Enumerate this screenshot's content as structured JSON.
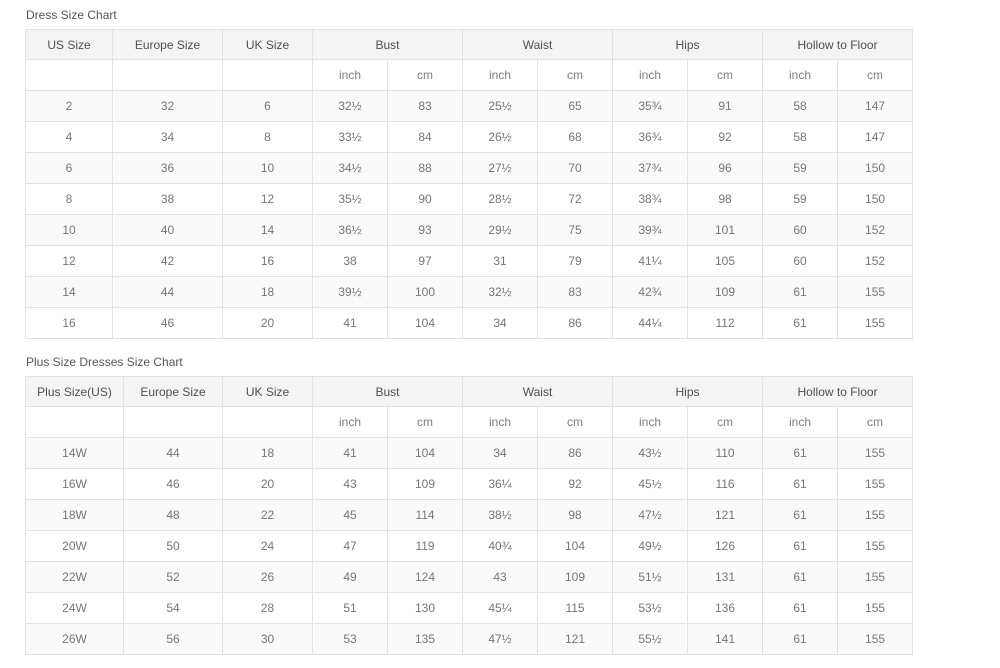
{
  "colors": {
    "page_bg": "#ffffff",
    "header_bg": "#f4f4f4",
    "stripe_bg": "#fafafa",
    "border": "#e2e2e2",
    "title_text": "#575757",
    "header_text": "#4f4f4f",
    "cell_text": "#767676"
  },
  "tables": [
    {
      "title": "Dress Size Chart",
      "group_headers": [
        "US Size",
        "Europe Size",
        "UK Size",
        "Bust",
        "Waist",
        "Hips",
        "Hollow to Floor"
      ],
      "unit_row": [
        "",
        "",
        "",
        "inch",
        "cm",
        "inch",
        "cm",
        "inch",
        "cm",
        "inch",
        "cm"
      ],
      "rows": [
        [
          "2",
          "32",
          "6",
          "32½",
          "83",
          "25½",
          "65",
          "35¾",
          "91",
          "58",
          "147"
        ],
        [
          "4",
          "34",
          "8",
          "33½",
          "84",
          "26½",
          "68",
          "36¾",
          "92",
          "58",
          "147"
        ],
        [
          "6",
          "36",
          "10",
          "34½",
          "88",
          "27½",
          "70",
          "37¾",
          "96",
          "59",
          "150"
        ],
        [
          "8",
          "38",
          "12",
          "35½",
          "90",
          "28½",
          "72",
          "38¾",
          "98",
          "59",
          "150"
        ],
        [
          "10",
          "40",
          "14",
          "36½",
          "93",
          "29½",
          "75",
          "39¾",
          "101",
          "60",
          "152"
        ],
        [
          "12",
          "42",
          "16",
          "38",
          "97",
          "31",
          "79",
          "41¼",
          "105",
          "60",
          "152"
        ],
        [
          "14",
          "44",
          "18",
          "39½",
          "100",
          "32½",
          "83",
          "42¾",
          "109",
          "61",
          "155"
        ],
        [
          "16",
          "46",
          "20",
          "41",
          "104",
          "34",
          "86",
          "44¼",
          "112",
          "61",
          "155"
        ]
      ]
    },
    {
      "title": "Plus Size Dresses Size Chart",
      "group_headers": [
        "Plus Size(US)",
        "Europe Size",
        "UK Size",
        "Bust",
        "Waist",
        "Hips",
        "Hollow to Floor"
      ],
      "unit_row": [
        "",
        "",
        "",
        "inch",
        "cm",
        "inch",
        "cm",
        "inch",
        "cm",
        "inch",
        "cm"
      ],
      "rows": [
        [
          "14W",
          "44",
          "18",
          "41",
          "104",
          "34",
          "86",
          "43½",
          "110",
          "61",
          "155"
        ],
        [
          "16W",
          "46",
          "20",
          "43",
          "109",
          "36¼",
          "92",
          "45½",
          "116",
          "61",
          "155"
        ],
        [
          "18W",
          "48",
          "22",
          "45",
          "114",
          "38½",
          "98",
          "47½",
          "121",
          "61",
          "155"
        ],
        [
          "20W",
          "50",
          "24",
          "47",
          "119",
          "40¾",
          "104",
          "49½",
          "126",
          "61",
          "155"
        ],
        [
          "22W",
          "52",
          "26",
          "49",
          "124",
          "43",
          "109",
          "51½",
          "131",
          "61",
          "155"
        ],
        [
          "24W",
          "54",
          "28",
          "51",
          "130",
          "45¼",
          "115",
          "53½",
          "136",
          "61",
          "155"
        ],
        [
          "26W",
          "56",
          "30",
          "53",
          "135",
          "47½",
          "121",
          "55½",
          "141",
          "61",
          "155"
        ]
      ]
    }
  ]
}
